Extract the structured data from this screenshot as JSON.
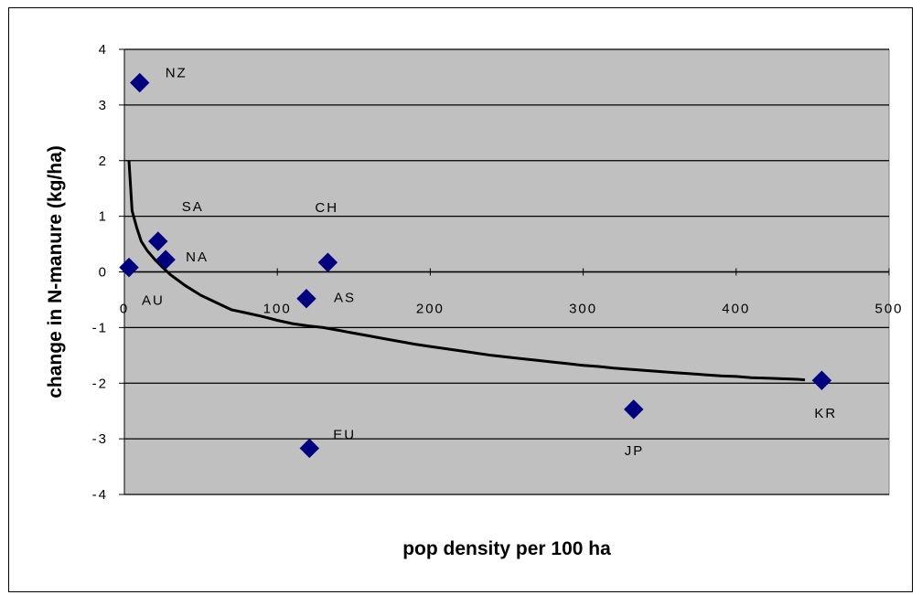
{
  "chart_data": {
    "type": "scatter",
    "title": "",
    "xlabel": "pop density per 100 ha",
    "ylabel": "change in N-manure (kg/ha)",
    "xlim": [
      0,
      500
    ],
    "ylim": [
      -4,
      4
    ],
    "x_ticks": [
      "0",
      "100",
      "200",
      "300",
      "400",
      "500"
    ],
    "y_ticks": [
      "4",
      "3",
      "2",
      "1",
      "0",
      "-1",
      "-2",
      "-3",
      "-4"
    ],
    "grid": "horizontal",
    "plot_background": "#c0c0c0",
    "marker_color": "#000080",
    "points": [
      {
        "label": "NZ",
        "x": 10,
        "y": 3.4
      },
      {
        "label": "SA",
        "x": 22,
        "y": 0.55
      },
      {
        "label": "NA",
        "x": 27,
        "y": 0.22
      },
      {
        "label": "AU",
        "x": 3,
        "y": 0.08
      },
      {
        "label": "CH",
        "x": 133,
        "y": 0.17
      },
      {
        "label": "AS",
        "x": 119,
        "y": -0.48
      },
      {
        "label": "EU",
        "x": 121,
        "y": -3.17
      },
      {
        "label": "JP",
        "x": 333,
        "y": -2.47
      },
      {
        "label": "KR",
        "x": 456,
        "y": -1.95
      }
    ],
    "trend_line": {
      "x": [
        3,
        5,
        8,
        11,
        15,
        20,
        25,
        30,
        40,
        50,
        60,
        70,
        80,
        90,
        100,
        110,
        120,
        130,
        140,
        150,
        160,
        170,
        180,
        190,
        200,
        210,
        220,
        230,
        240,
        250,
        260,
        270,
        280,
        290,
        300,
        310,
        320,
        330,
        340,
        350,
        360,
        370,
        380,
        390,
        400,
        410,
        420,
        430,
        440,
        445
      ],
      "y": [
        2.0,
        1.1,
        0.8,
        0.55,
        0.38,
        0.22,
        0.08,
        -0.05,
        -0.25,
        -0.42,
        -0.55,
        -0.68,
        -0.74,
        -0.8,
        -0.87,
        -0.93,
        -0.97,
        -1.0,
        -1.05,
        -1.1,
        -1.15,
        -1.2,
        -1.25,
        -1.3,
        -1.34,
        -1.38,
        -1.42,
        -1.46,
        -1.5,
        -1.53,
        -1.56,
        -1.59,
        -1.62,
        -1.65,
        -1.68,
        -1.7,
        -1.73,
        -1.75,
        -1.77,
        -1.79,
        -1.81,
        -1.83,
        -1.85,
        -1.87,
        -1.88,
        -1.9,
        -1.91,
        -1.92,
        -1.93,
        -1.94
      ]
    }
  }
}
